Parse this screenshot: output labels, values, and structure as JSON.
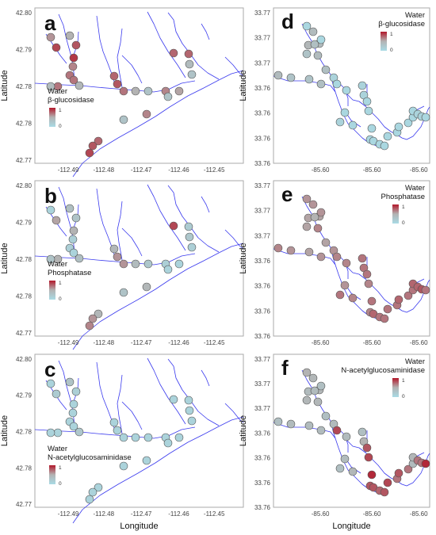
{
  "figure": {
    "colors": {
      "low": "#a9dbe5",
      "mid": "#b3b3b3",
      "high": "#b2182b",
      "stream": "#3a3aee",
      "frame": "#aaaaaa",
      "marker_edge": "#555555"
    },
    "x_axis_label": "Longitude",
    "y_axis_label": "Latitude"
  },
  "chart_data": [
    {
      "panel": "a",
      "type": "scatter",
      "map": "west",
      "legend_title": [
        "Water",
        "β-glucosidase"
      ],
      "legend_ticks": [
        "1",
        "0"
      ],
      "xticks": [
        "-112.49",
        "-112.48",
        "-112.47",
        "-112.46",
        "-112.45"
      ],
      "yticks": [
        "42.80",
        "42.79",
        "42.78",
        "42.78",
        "42.77"
      ],
      "xlabel": "",
      "ylabel": "Latitude",
      "activity": [
        0.5,
        0.85,
        0.8,
        0.6,
        0.9,
        0.65,
        0.7,
        0.7,
        0.45,
        0.7,
        0.4,
        0.75,
        0.8,
        0.7,
        0.5,
        0.3,
        0.65,
        0.75,
        0.75,
        0.4,
        0.3,
        0.55,
        0.3,
        0.65,
        0.3,
        0.75,
        0.8,
        0.85
      ]
    },
    {
      "panel": "b",
      "type": "scatter",
      "map": "west",
      "legend_title": [
        "Water",
        "Phosphatase"
      ],
      "legend_ticks": [
        "1",
        "0"
      ],
      "xticks": [
        "-112.49",
        "-112.48",
        "-112.47",
        "-112.46",
        "-112.45"
      ],
      "yticks": [
        "42.80",
        "42.79",
        "42.78",
        "42.78",
        "42.77"
      ],
      "xlabel": "",
      "ylabel": "Latitude",
      "activity": [
        0.35,
        0.55,
        0.3,
        0.1,
        0.5,
        0.15,
        0.15,
        0.1,
        0.35,
        0.5,
        0.3,
        0.45,
        0.6,
        0.6,
        0.4,
        0.25,
        0.15,
        0.85,
        0.2,
        0.25,
        0.15,
        0.1,
        0.1,
        0.45,
        0.3,
        0.45,
        0.6,
        0.65
      ]
    },
    {
      "panel": "c",
      "type": "scatter",
      "map": "west",
      "legend_title": [
        "Water",
        "N-acetylglucosaminidase"
      ],
      "legend_ticks": [
        "1",
        "0"
      ],
      "xticks": [
        "-112.49",
        "-112.48",
        "-112.47",
        "-112.46",
        "-112.45"
      ],
      "yticks": [
        "42.80",
        "42.79",
        "42.78",
        "42.78",
        "42.77"
      ],
      "xlabel": "Longitude",
      "ylabel": "Latitude",
      "activity": [
        0.3,
        0.2,
        0.15,
        0.1,
        0.1,
        0.1,
        0.1,
        0.1,
        0.25,
        0.1,
        0.1,
        0.1,
        0.1,
        0.1,
        0.1,
        0.1,
        0.1,
        0.1,
        0.1,
        0.1,
        0.1,
        0.1,
        0.1,
        0.1,
        0.1,
        0.1,
        0.1,
        0.1
      ]
    },
    {
      "panel": "d",
      "type": "scatter",
      "map": "east",
      "legend_title": [
        "Water",
        "β-glucosidase"
      ],
      "legend_ticks": [
        "1",
        "0"
      ],
      "xticks": [
        "-85.60",
        "-85.60",
        "-85.60"
      ],
      "yticks": [
        "33.77",
        "33.77",
        "33.77",
        "33.76",
        "33.76",
        "33.76",
        "33.76"
      ],
      "xlabel": "",
      "ylabel": "Latitude",
      "activity": [
        0.05,
        0.4,
        0.4,
        0.45,
        0.35,
        0.3,
        0.4,
        0.35,
        0.35,
        0.3,
        0.3,
        0.4,
        0.05,
        0.1,
        0.05,
        0.05,
        0.05,
        0.05,
        0.1,
        0.1,
        0.1,
        0.05,
        0.05,
        0.05,
        0.05,
        0.05,
        0.05,
        0.05,
        0.05,
        0.05,
        0.05,
        0.05,
        0.05,
        0.05,
        0.1,
        0.1,
        0.05
      ]
    },
    {
      "panel": "e",
      "type": "scatter",
      "map": "east",
      "legend_title": [
        "Water",
        "Phosphatase"
      ],
      "legend_ticks": [
        "1",
        "0"
      ],
      "xticks": [
        "-85.60",
        "-85.60",
        "-85.60"
      ],
      "yticks": [
        "33.77",
        "33.77",
        "33.77",
        "33.76",
        "33.76",
        "33.76",
        "33.76"
      ],
      "xlabel": "",
      "ylabel": "Latitude",
      "activity": [
        0.6,
        0.6,
        0.55,
        0.55,
        0.5,
        0.55,
        0.65,
        0.55,
        0.6,
        0.55,
        0.6,
        0.65,
        0.6,
        0.6,
        0.65,
        0.65,
        0.6,
        0.65,
        0.7,
        0.7,
        0.7,
        0.7,
        0.65,
        0.7,
        0.65,
        0.75,
        0.7,
        0.7,
        0.7,
        0.7,
        0.75,
        0.7,
        0.7,
        0.75,
        0.75,
        0.8,
        0.7
      ]
    },
    {
      "panel": "f",
      "type": "scatter",
      "map": "east",
      "legend_title": [
        "Water",
        "N-acetylglucosaminidase"
      ],
      "legend_ticks": [
        "1",
        "0"
      ],
      "xticks": [
        "-85.60",
        "-85.60",
        "-85.60"
      ],
      "yticks": [
        "33.77",
        "33.77",
        "33.77",
        "33.76",
        "33.76",
        "33.76",
        "33.76"
      ],
      "xlabel": "Longitude",
      "ylabel": "Latitude",
      "activity": [
        0.5,
        0.45,
        0.45,
        0.4,
        0.4,
        0.45,
        0.45,
        0.35,
        0.4,
        0.4,
        0.4,
        0.35,
        0.35,
        0.4,
        0.85,
        0.4,
        0.4,
        0.45,
        0.35,
        0.35,
        0.5,
        0.8,
        0.85,
        0.95,
        0.8,
        0.8,
        0.75,
        0.8,
        0.85,
        0.7,
        0.8,
        0.7,
        0.4,
        0.45,
        0.7,
        0.7,
        0.95
      ]
    }
  ]
}
